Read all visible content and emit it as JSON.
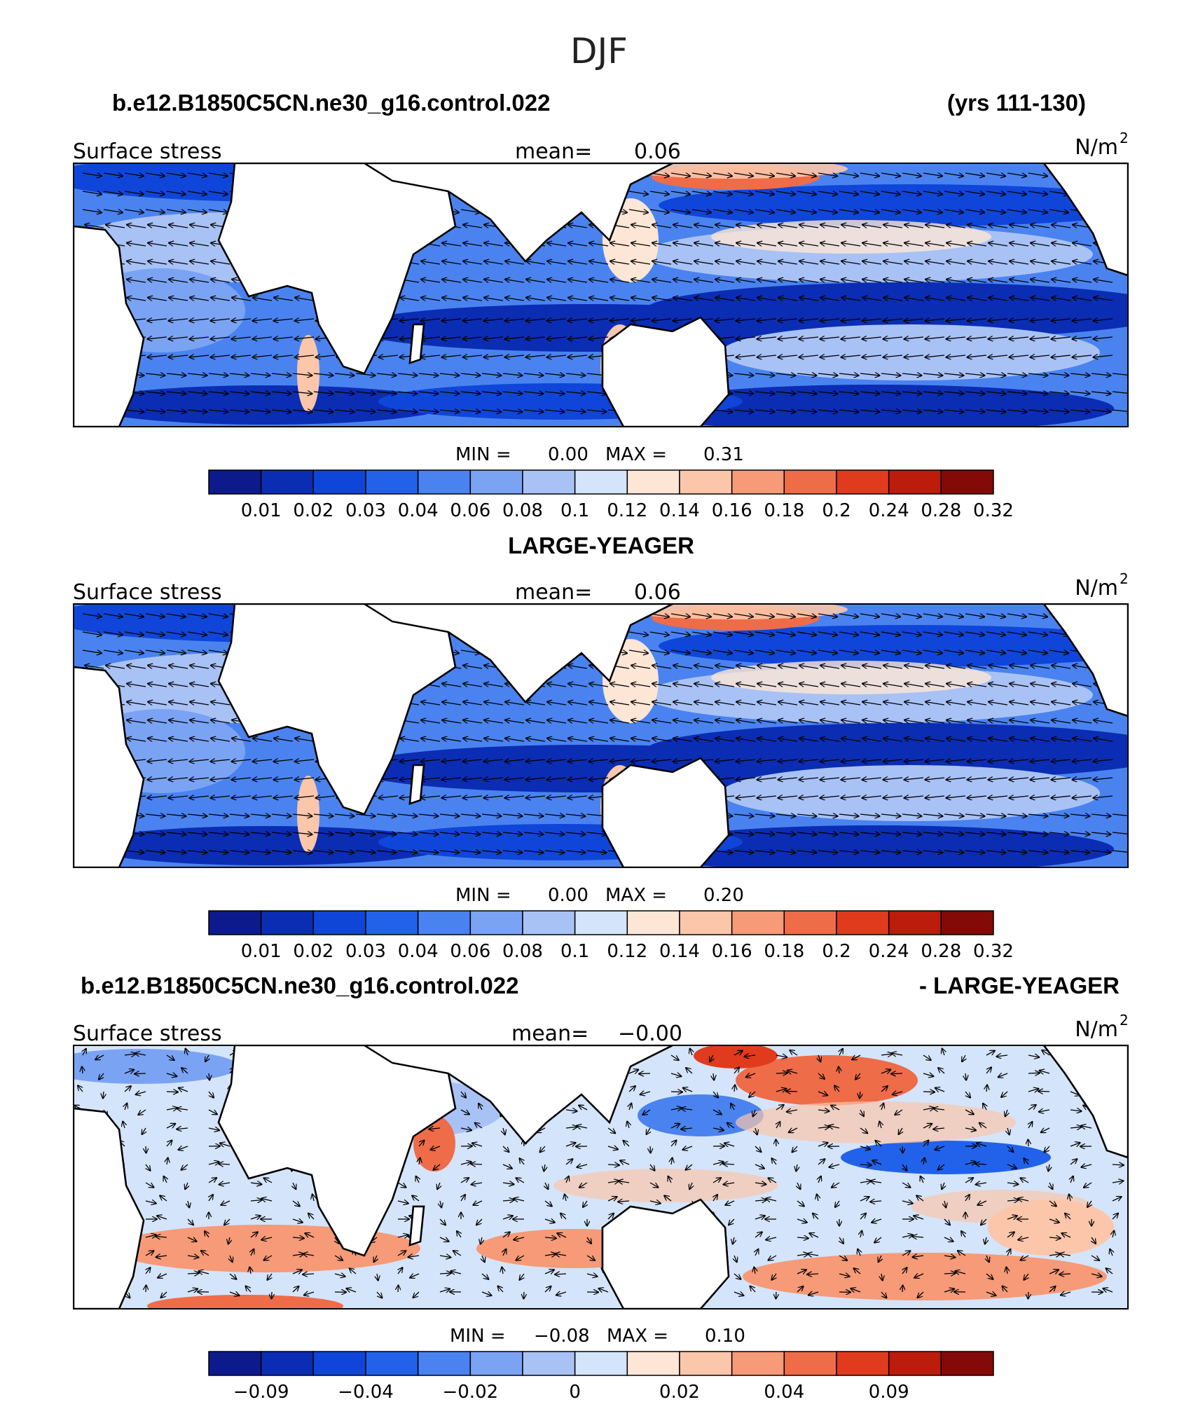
{
  "page_title": "DJF",
  "header": {
    "case_name": "b.e12.B1850C5CN.ne30_g16.control.022",
    "years": "(yrs 111-130)"
  },
  "panels": [
    {
      "title": "",
      "variable": "Surface stress",
      "mean_label": "mean=",
      "mean_value": "0.06",
      "units": "N/m",
      "units_sup": "2",
      "min_label": "MIN =",
      "min_value": "0.00",
      "max_label": "MAX =",
      "max_value": "0.31",
      "colorbar_ticks": [
        "0.01",
        "0.02",
        "0.03",
        "0.04",
        "0.06",
        "0.08",
        "0.1",
        "0.12",
        "0.14",
        "0.16",
        "0.18",
        "0.2",
        "0.24",
        "0.28",
        "0.32"
      ]
    },
    {
      "title": "LARGE-YEAGER",
      "variable": "Surface stress",
      "mean_label": "mean=",
      "mean_value": "0.06",
      "units": "N/m",
      "units_sup": "2",
      "min_label": "MIN =",
      "min_value": "0.00",
      "max_label": "MAX =",
      "max_value": "0.20",
      "colorbar_ticks": [
        "0.01",
        "0.02",
        "0.03",
        "0.04",
        "0.06",
        "0.08",
        "0.1",
        "0.12",
        "0.14",
        "0.16",
        "0.18",
        "0.2",
        "0.24",
        "0.28",
        "0.32"
      ]
    },
    {
      "title_left": "b.e12.B1850C5CN.ne30_g16.control.022",
      "title_right": "- LARGE-YEAGER",
      "variable": "Surface stress",
      "mean_label": "mean=",
      "mean_value": "−0.00",
      "units": "N/m",
      "units_sup": "2",
      "min_label": "MIN =",
      "min_value": "−0.08",
      "max_label": "MAX =",
      "max_value": "0.10",
      "colorbar_ticks": [
        "−0.09",
        "−0.04",
        "−0.02",
        "0",
        "0.02",
        "0.04",
        "0.09"
      ]
    }
  ],
  "colors": {
    "palette": [
      "#0d1a8c",
      "#0b2db3",
      "#0f46d9",
      "#2262ea",
      "#4a83f0",
      "#7ba3f4",
      "#a8c2f6",
      "#d4e4fa",
      "#fde6d6",
      "#fbc6aa",
      "#f69a78",
      "#ef6c48",
      "#e03b1d",
      "#bb1c0c",
      "#830a06"
    ],
    "land": "#ffffff",
    "coast": "#000000"
  }
}
